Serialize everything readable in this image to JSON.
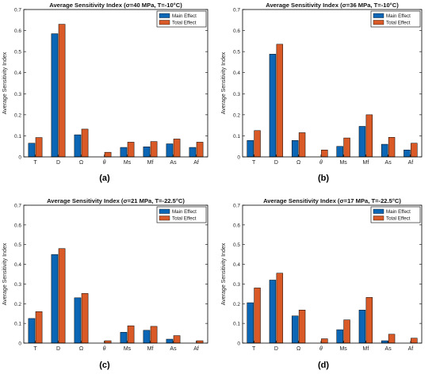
{
  "legend": {
    "main": "Main Effect",
    "total": "Total Effect"
  },
  "colors": {
    "main": "#0b67b6",
    "total": "#d95a26",
    "stroke": "#000000"
  },
  "chart_data": [
    {
      "type": "bar",
      "panel_label": "(a)",
      "title": "Average Sensitivity Index (σ=40 MPa, T=-10°C)",
      "ylabel": "Average Sensitivity Index",
      "ylim": [
        0,
        0.7
      ],
      "yticks": [
        "0",
        "0.1",
        "0.2",
        "0.3",
        "0.4",
        "0.5",
        "0.6",
        "0.7"
      ],
      "categories": [
        "T",
        "D",
        "Ω",
        "θ",
        "Ms",
        "Mf",
        "As",
        "Af"
      ],
      "series": [
        {
          "name": "Main Effect",
          "values": [
            0.065,
            0.585,
            0.105,
            0.0,
            0.045,
            0.048,
            0.062,
            0.045
          ]
        },
        {
          "name": "Total Effect",
          "values": [
            0.092,
            0.63,
            0.132,
            0.022,
            0.07,
            0.073,
            0.085,
            0.07
          ]
        }
      ],
      "legend_position": "top-right"
    },
    {
      "type": "bar",
      "panel_label": "(b)",
      "title": "Average Sensitivity Index (σ=36 MPa, T=-10°C)",
      "ylabel": "Average Sensitivity Index",
      "ylim": [
        0,
        0.7
      ],
      "yticks": [
        "0",
        "0.1",
        "0.2",
        "0.3",
        "0.4",
        "0.5",
        "0.6",
        "0.7"
      ],
      "categories": [
        "T",
        "D",
        "Ω",
        "θ",
        "Ms",
        "Mf",
        "As",
        "Af"
      ],
      "series": [
        {
          "name": "Main Effect",
          "values": [
            0.078,
            0.488,
            0.078,
            0.0,
            0.05,
            0.145,
            0.06,
            0.033
          ]
        },
        {
          "name": "Total Effect",
          "values": [
            0.125,
            0.535,
            0.115,
            0.033,
            0.09,
            0.2,
            0.093,
            0.065
          ]
        }
      ],
      "legend_position": "top-right"
    },
    {
      "type": "bar",
      "panel_label": "(c)",
      "title": "Average Sensitivity Index (σ=21 MPa, T=-22.5°C)",
      "ylabel": "Average Sensitivity Index",
      "ylim": [
        0,
        0.7
      ],
      "yticks": [
        "0",
        "0.1",
        "0.2",
        "0.3",
        "0.4",
        "0.5",
        "0.6",
        "0.7"
      ],
      "categories": [
        "T",
        "D",
        "Ω",
        "θ",
        "Ms",
        "Mf",
        "As",
        "Af"
      ],
      "series": [
        {
          "name": "Main Effect",
          "values": [
            0.125,
            0.45,
            0.23,
            0.0,
            0.055,
            0.065,
            0.02,
            0.0
          ]
        },
        {
          "name": "Total Effect",
          "values": [
            0.16,
            0.48,
            0.252,
            0.012,
            0.088,
            0.085,
            0.038,
            0.012
          ]
        }
      ],
      "legend_position": "top-right"
    },
    {
      "type": "bar",
      "panel_label": "(d)",
      "title": "Average Sensitivity Index (σ=17 MPa, T=-22.5°C)",
      "ylabel": "Average Sensitivity Index",
      "ylim": [
        0,
        0.7
      ],
      "yticks": [
        "0",
        "0.1",
        "0.2",
        "0.3",
        "0.4",
        "0.5",
        "0.6",
        "0.7"
      ],
      "categories": [
        "T",
        "D",
        "Ω",
        "θ",
        "Ms",
        "Mf",
        "As",
        "Af"
      ],
      "series": [
        {
          "name": "Main Effect",
          "values": [
            0.205,
            0.32,
            0.138,
            0.0,
            0.068,
            0.168,
            0.012,
            0.0
          ]
        },
        {
          "name": "Total Effect",
          "values": [
            0.28,
            0.355,
            0.168,
            0.022,
            0.118,
            0.232,
            0.045,
            0.025
          ]
        }
      ],
      "legend_position": "top-right"
    }
  ]
}
